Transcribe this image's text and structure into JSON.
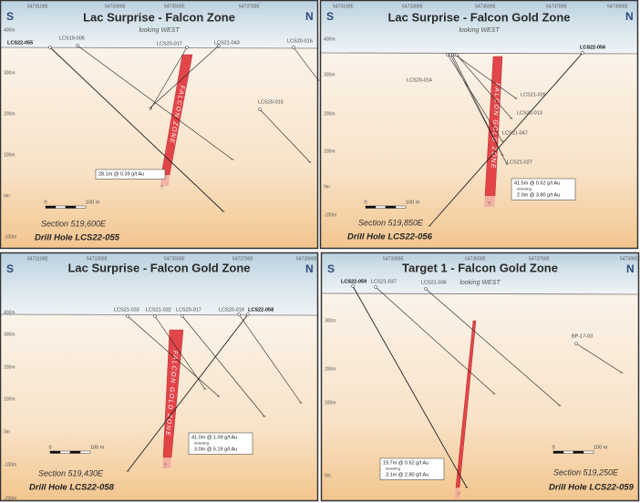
{
  "panels": [
    {
      "title": "Lac Surprise - Falcon Zone",
      "subtitle": "looking WEST",
      "left": "S",
      "right": "N",
      "eastings": [
        "5473100E",
        "5473300E",
        "5473500E",
        "5473700E"
      ],
      "elevations": [
        "400m",
        "300m",
        "200m",
        "100m",
        "0m",
        "-100m"
      ],
      "holes": [
        "LCS22-055",
        "LCS19-005",
        "LCS20-017",
        "LCS21-043",
        "LCS20-016",
        "LCS20-015"
      ],
      "zone_label": "FALCON ZONE",
      "question_mark": "?",
      "intercept": [
        "28.1m @ 0.39 g/t Au"
      ],
      "scale": [
        "0",
        "100 m"
      ],
      "section": "Section 519,600E",
      "drill_hole": "Drill Hole LCS22-055"
    },
    {
      "title": "Lac Surprise - Falcon Gold Zone",
      "subtitle": "looking WEST",
      "left": "S",
      "right": "N",
      "eastings": [
        "5473100E",
        "5473300E",
        "5473500E",
        "5473700E",
        "5473900E"
      ],
      "elevations": [
        "400m",
        "300m",
        "200m",
        "100m",
        "0m",
        "-100m"
      ],
      "holes": [
        "LCS22-056",
        "LCS20-014",
        "LCS21-026",
        "LCS20-013",
        "LCS21-047",
        "LCS21-027"
      ],
      "zone_label": "FALCON GOLD ZONE",
      "question_mark": "?",
      "intercept": [
        "41.5m @ 0.62 g/t Au",
        "including",
        "2.0m @ 3.80 g/t Au"
      ],
      "scale": [
        "0",
        "100 m"
      ],
      "section": "Section 519,850E",
      "drill_hole": "Drill Hole LCS22-056"
    },
    {
      "title": "Lac Surprise - Falcon Gold Zone",
      "left": "S",
      "right": "N",
      "eastings": [
        "5473100E",
        "5473300E",
        "5473500E",
        "5473700E",
        "5473900E"
      ],
      "elevations": [
        "400m",
        "300m",
        "200m",
        "100m",
        "0m",
        "-100m",
        "-200m"
      ],
      "holes": [
        "LCS22-058",
        "LCS21-033",
        "LCS21-032",
        "LCS20-017",
        "LCS20-018"
      ],
      "zone_label": "FALCON GOLD ZONE",
      "question_mark": "?",
      "intercept": [
        "41.0m @ 1.09 g/t Au",
        "including",
        "3.0m @ 5.19 g/t Au"
      ],
      "scale": [
        "0",
        "100 m"
      ],
      "section": "Section 519,430E",
      "drill_hole": "Drill Hole LCS22-058"
    },
    {
      "title": "Target 1 - Falcon Gold Zone",
      "subtitle": "looking WEST",
      "left": "S",
      "right": "N",
      "eastings": [
        "5473300E",
        "5473500E",
        "5473700E",
        "5473900E"
      ],
      "elevations": [
        "300m",
        "200m",
        "100m",
        "0m"
      ],
      "holes": [
        "LCS22-059",
        "LCS21-037",
        "LCS21-036",
        "BP-17-03"
      ],
      "question_mark": "?",
      "intercept": [
        "19.7m @ 0.62 g/t Au",
        "including",
        "3.1m @ 2.80 g/t Au"
      ],
      "scale": [
        "0",
        "100 m"
      ],
      "section": "Section 519,250E",
      "drill_hole": "Drill Hole LCS22-059"
    }
  ]
}
